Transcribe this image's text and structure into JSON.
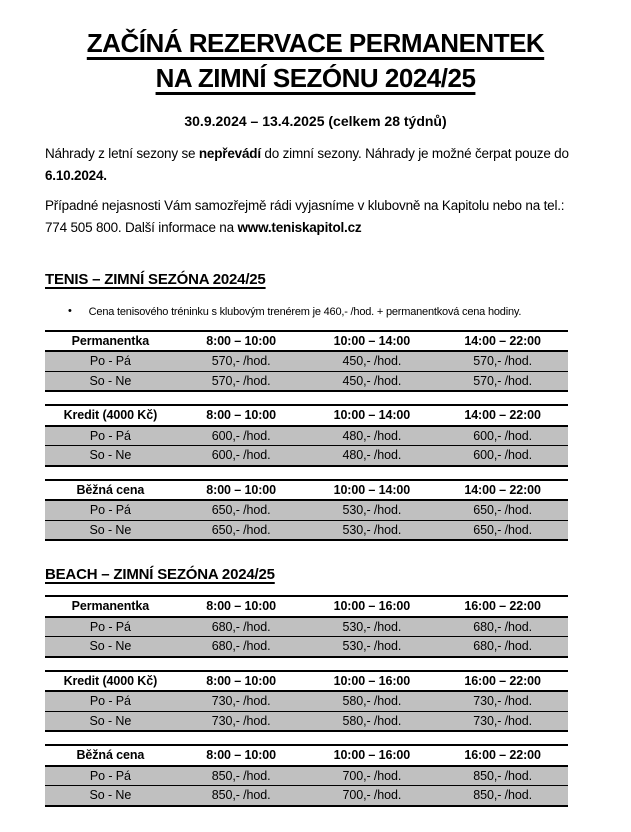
{
  "header": {
    "title_line1": "ZAČÍNÁ REZERVACE PERMANENTEK",
    "title_line2": "NA ZIMNÍ SEZÓNU 2024/25",
    "subtitle": "30.9.2024 – 13.4.2025 (celkem 28 týdnů)"
  },
  "intro": {
    "p1_run1": "Náhrady z letní sezony se ",
    "p1_bold1": "nepřevádí",
    "p1_run2": " do zimní sezony. Náhrady je možné čerpat pouze do ",
    "p1_bold2": "6.10.2024.",
    "p2_run1": "Případné nejasnosti Vám samozřejmě rádi vyjasníme v klubovně na Kapitolu nebo na tel.: 774 505 800. Další informace na ",
    "p2_bold1": "www.teniskapitol.cz"
  },
  "list": {
    "marker": "•"
  },
  "sections": [
    {
      "heading": "TENIS – ZIMNÍ SEZÓNA 2024/25",
      "bullet": "Cena tenisového tréninku s klubovým trenérem je 460,- /hod. + permanentková cena hodiny.",
      "tables": [
        {
          "headers": [
            "Permanentka",
            "8:00 – 10:00",
            "10:00 – 14:00",
            "14:00 – 22:00"
          ],
          "rows": [
            [
              "Po - Pá",
              "570,- /hod.",
              "450,- /hod.",
              "570,- /hod."
            ],
            [
              "So - Ne",
              "570,- /hod.",
              "450,- /hod.",
              "570,- /hod."
            ]
          ]
        },
        {
          "headers": [
            "Kredit (4000 Kč)",
            "8:00 – 10:00",
            "10:00 – 14:00",
            "14:00 – 22:00"
          ],
          "rows": [
            [
              "Po - Pá",
              "600,- /hod.",
              "480,- /hod.",
              "600,- /hod."
            ],
            [
              "So - Ne",
              "600,- /hod.",
              "480,- /hod.",
              "600,- /hod."
            ]
          ]
        },
        {
          "headers": [
            "Běžná cena",
            "8:00 – 10:00",
            "10:00 – 14:00",
            "14:00 – 22:00"
          ],
          "rows": [
            [
              "Po - Pá",
              "650,- /hod.",
              "530,- /hod.",
              "650,- /hod."
            ],
            [
              "So - Ne",
              "650,- /hod.",
              "530,- /hod.",
              "650,- /hod."
            ]
          ]
        }
      ]
    },
    {
      "heading": "BEACH – ZIMNÍ SEZÓNA 2024/25",
      "tables": [
        {
          "headers": [
            "Permanentka",
            "8:00 – 10:00",
            "10:00 – 16:00",
            "16:00 – 22:00"
          ],
          "rows": [
            [
              "Po - Pá",
              "680,- /hod.",
              "530,- /hod.",
              "680,- /hod."
            ],
            [
              "So - Ne",
              "680,- /hod.",
              "530,- /hod.",
              "680,- /hod."
            ]
          ]
        },
        {
          "headers": [
            "Kredit (4000 Kč)",
            "8:00 – 10:00",
            "10:00 – 16:00",
            "16:00 – 22:00"
          ],
          "rows": [
            [
              "Po - Pá",
              "730,- /hod.",
              "580,- /hod.",
              "730,- /hod."
            ],
            [
              "So - Ne",
              "730,- /hod.",
              "580,- /hod.",
              "730,- /hod."
            ]
          ]
        },
        {
          "headers": [
            "Běžná cena",
            "8:00 – 10:00",
            "10:00 – 16:00",
            "16:00 – 22:00"
          ],
          "rows": [
            [
              "Po - Pá",
              "850,- /hod.",
              "700,- /hod.",
              "850,- /hod."
            ],
            [
              "So - Ne",
              "850,- /hod.",
              "700,- /hod.",
              "850,- /hod."
            ]
          ]
        }
      ]
    }
  ],
  "colors": {
    "row_gray": "#c0c0c0",
    "border": "#000000",
    "text": "#000000",
    "background": "#ffffff"
  }
}
